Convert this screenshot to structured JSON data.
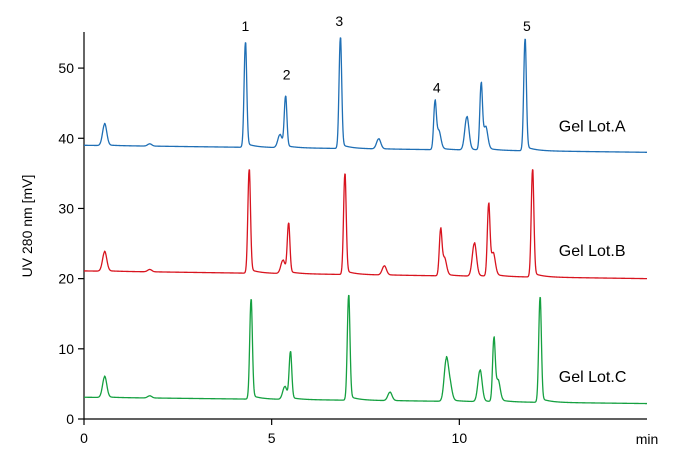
{
  "chart_data": {
    "type": "line",
    "title": "",
    "xlabel": "min",
    "ylabel": "UV 280 nm [mV]",
    "xlim": [
      0,
      15
    ],
    "ylim": [
      0,
      55
    ],
    "xticks": [
      0,
      5,
      10
    ],
    "yticks": [
      0,
      10,
      20,
      30,
      40,
      50
    ],
    "grid": false,
    "colors": {
      "Gel Lot.A": "#1f6fb5",
      "Gel Lot.B": "#d8141f",
      "Gel Lot.C": "#15a040"
    },
    "peak_labels": [
      {
        "text": "1",
        "x": 4.3,
        "y": 55.3
      },
      {
        "text": "2",
        "x": 5.4,
        "y": 48.4
      },
      {
        "text": "3",
        "x": 6.8,
        "y": 56.0
      },
      {
        "text": "4",
        "x": 9.4,
        "y": 46.5
      },
      {
        "text": "5",
        "x": 11.8,
        "y": 55.3
      }
    ],
    "series": [
      {
        "name": "Gel Lot.A",
        "baseline_start": 39.0,
        "baseline_end": 38.0,
        "label_x": 12.65,
        "label_y": 41.0,
        "peaks": [
          {
            "x": 0.55,
            "y": 42.0
          },
          {
            "x": 1.75,
            "y": 39.2
          },
          {
            "x": 4.3,
            "y": 53.6
          },
          {
            "x": 5.22,
            "y": 40.5
          },
          {
            "x": 5.37,
            "y": 45.9
          },
          {
            "x": 6.83,
            "y": 54.3
          },
          {
            "x": 7.85,
            "y": 39.9
          },
          {
            "x": 9.35,
            "y": 44.8
          },
          {
            "x": 9.45,
            "y": 40.9
          },
          {
            "x": 10.2,
            "y": 43.0
          },
          {
            "x": 10.58,
            "y": 47.5
          },
          {
            "x": 10.7,
            "y": 41.4
          },
          {
            "x": 11.75,
            "y": 54.1
          }
        ]
      },
      {
        "name": "Gel Lot.B",
        "baseline_start": 21.1,
        "baseline_end": 20.0,
        "label_x": 12.65,
        "label_y": 23.2,
        "peaks": [
          {
            "x": 0.55,
            "y": 23.8
          },
          {
            "x": 1.75,
            "y": 21.3
          },
          {
            "x": 4.4,
            "y": 35.5
          },
          {
            "x": 5.3,
            "y": 22.6
          },
          {
            "x": 5.45,
            "y": 27.8
          },
          {
            "x": 6.95,
            "y": 34.9
          },
          {
            "x": 8.0,
            "y": 21.8
          },
          {
            "x": 9.5,
            "y": 26.6
          },
          {
            "x": 9.6,
            "y": 22.8
          },
          {
            "x": 10.4,
            "y": 25.0
          },
          {
            "x": 10.78,
            "y": 30.3
          },
          {
            "x": 10.9,
            "y": 23.4
          },
          {
            "x": 11.95,
            "y": 35.5
          }
        ]
      },
      {
        "name": "Gel Lot.C",
        "baseline_start": 3.1,
        "baseline_end": 2.2,
        "label_x": 12.65,
        "label_y": 5.3,
        "peaks": [
          {
            "x": 0.55,
            "y": 6.0
          },
          {
            "x": 1.75,
            "y": 3.3
          },
          {
            "x": 4.45,
            "y": 17.0
          },
          {
            "x": 5.35,
            "y": 4.6
          },
          {
            "x": 5.5,
            "y": 9.5
          },
          {
            "x": 7.05,
            "y": 17.6
          },
          {
            "x": 8.15,
            "y": 3.8
          },
          {
            "x": 9.65,
            "y": 8.2
          },
          {
            "x": 9.75,
            "y": 4.6
          },
          {
            "x": 10.55,
            "y": 6.9
          },
          {
            "x": 10.92,
            "y": 11.1
          },
          {
            "x": 11.03,
            "y": 5.3
          },
          {
            "x": 12.15,
            "y": 17.3
          }
        ]
      }
    ]
  }
}
